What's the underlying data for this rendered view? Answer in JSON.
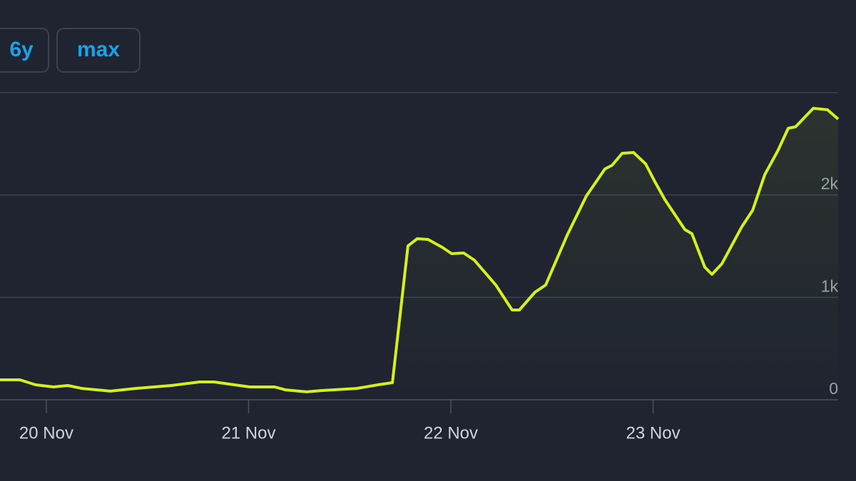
{
  "controls": {
    "ranges": [
      "6y",
      "max"
    ]
  },
  "chart_data": {
    "type": "line",
    "x": [
      -0.229,
      -0.131,
      -0.053,
      0.035,
      0.106,
      0.176,
      0.317,
      0.441,
      0.617,
      0.758,
      0.829,
      1.005,
      1.129,
      1.182,
      1.287,
      1.358,
      1.534,
      1.64,
      1.711,
      1.788,
      1.834,
      1.887,
      1.958,
      2.004,
      2.063,
      2.116,
      2.222,
      2.303,
      2.339,
      2.416,
      2.469,
      2.575,
      2.67,
      2.762,
      2.797,
      2.847,
      2.903,
      2.963,
      3.009,
      3.058,
      3.157,
      3.192,
      3.256,
      3.291,
      3.34,
      3.439,
      3.492,
      3.552,
      3.616,
      3.668,
      3.704,
      3.792,
      3.862,
      3.915
    ],
    "series": [
      {
        "color": "#d4f01e",
        "values": [
          195,
          195,
          146,
          125,
          139,
          111,
          84,
          111,
          139,
          174,
          174,
          125,
          125,
          97,
          77,
          90,
          111,
          146,
          167,
          1503,
          1573,
          1566,
          1489,
          1427,
          1434,
          1364,
          1121,
          877,
          877,
          1051,
          1121,
          1608,
          1991,
          2255,
          2290,
          2408,
          2415,
          2304,
          2130,
          1956,
          1663,
          1622,
          1295,
          1225,
          1329,
          1691,
          1851,
          2199,
          2429,
          2652,
          2666,
          2847,
          2833,
          2742
        ]
      }
    ],
    "xlim": [
      -0.229,
      3.915
    ],
    "xticks": [
      {
        "value": 0,
        "label": "20 Nov"
      },
      {
        "value": 1,
        "label": "21 Nov"
      },
      {
        "value": 2,
        "label": "22 Nov"
      },
      {
        "value": 3,
        "label": "23 Nov"
      }
    ],
    "ylim": [
      0,
      3000
    ],
    "yticks": [
      0,
      {
        "value": 1000,
        "label": "1k"
      },
      {
        "value": 2000,
        "label": "2k"
      }
    ],
    "grid": true
  }
}
